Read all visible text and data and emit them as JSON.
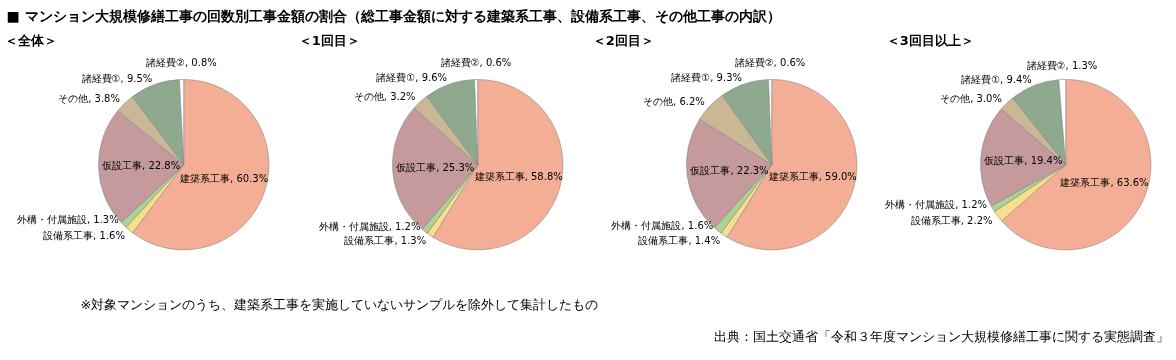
{
  "chart_data": [
    {
      "type": "pie",
      "title": "■ マンション大規模修繕工事の回数別工事金額の割合（総工事金額に対する建築系工事、設備系工事、その他工事の内訳）",
      "subtitle": "＜全体＞",
      "categories": [
        "建築系工事",
        "設備系工事",
        "外構・付属施設",
        "仮設工事",
        "その他",
        "諸経費①",
        "諸経費②"
      ],
      "values": [
        60.3,
        1.6,
        1.3,
        22.8,
        3.8,
        9.5,
        0.8
      ],
      "value_labels": [
        "60.3%",
        "1.6%",
        "1.3%",
        "22.8%",
        "3.8%",
        "9.5%",
        "0.8%"
      ],
      "colors": [
        "#f4ae96",
        "#f9df8c",
        "#acd392",
        "#c49a9c",
        "#c9b796",
        "#8fa98e",
        "#ffffff"
      ],
      "annotations": [
        "※対象マンションのうち、建築系工事を実施していないサンプルを除外して集計したもの",
        "出典：国土交通省「令和３年度マンション大規模修繕工事に関する実態調査」"
      ]
    },
    {
      "type": "pie",
      "subtitle": "＜1回目＞",
      "categories": [
        "建築系工事",
        "設備系工事",
        "外構・付属施設",
        "仮設工事",
        "その他",
        "諸経費①",
        "諸経費②"
      ],
      "values": [
        58.8,
        1.3,
        1.2,
        25.3,
        3.2,
        9.6,
        0.6
      ],
      "value_labels": [
        "58.8%",
        "1.3%",
        "1.2%",
        "25.3%",
        "3.2%",
        "9.6%",
        "0.6%"
      ],
      "colors": [
        "#f4ae96",
        "#f9df8c",
        "#acd392",
        "#c49a9c",
        "#c9b796",
        "#8fa98e",
        "#ffffff"
      ]
    },
    {
      "type": "pie",
      "subtitle": "＜2回目＞",
      "categories": [
        "建築系工事",
        "設備系工事",
        "外構・付属施設",
        "仮設工事",
        "その他",
        "諸経費①",
        "諸経費②"
      ],
      "values": [
        59.0,
        1.4,
        1.6,
        22.3,
        6.2,
        9.3,
        0.6
      ],
      "value_labels": [
        "59.0%",
        "1.4%",
        "1.6%",
        "22.3%",
        "6.2%",
        "9.3%",
        "0.6%"
      ],
      "colors": [
        "#f4ae96",
        "#f9df8c",
        "#acd392",
        "#c49a9c",
        "#c9b796",
        "#8fa98e",
        "#ffffff"
      ]
    },
    {
      "type": "pie",
      "subtitle": "＜3回目以上＞",
      "categories": [
        "建築系工事",
        "設備系工事",
        "外構・付属施設",
        "仮設工事",
        "その他",
        "諸経費①",
        "諸経費②"
      ],
      "values": [
        63.6,
        2.2,
        1.2,
        19.4,
        3.0,
        9.4,
        1.3
      ],
      "value_labels": [
        "63.6%",
        "2.2%",
        "1.2%",
        "19.4%",
        "3.0%",
        "9.4%",
        "1.3%"
      ],
      "colors": [
        "#f4ae96",
        "#f9df8c",
        "#acd392",
        "#c49a9c",
        "#c9b796",
        "#8fa98e",
        "#ffffff"
      ]
    }
  ]
}
